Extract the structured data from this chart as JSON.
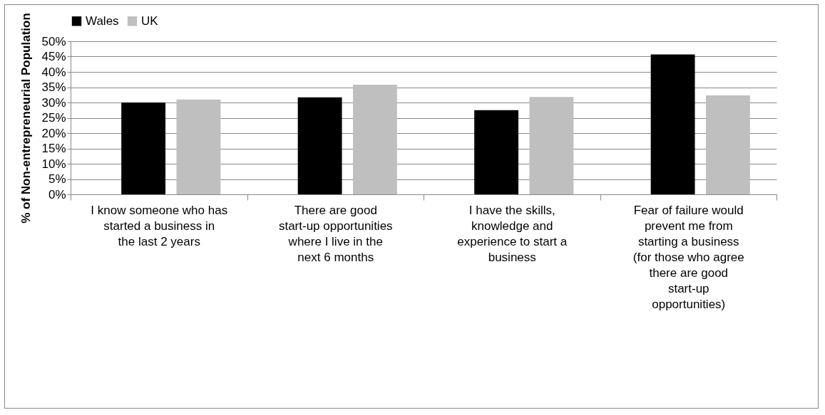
{
  "chart_data": {
    "type": "bar",
    "ylabel": "% of Non-entrepreneurial Population",
    "categories": [
      "I know someone who has started a business in the last 2 years",
      "There are good start-up opportunities where I live in the next 6 months",
      "I have the skills, knowledge and experience to start a business",
      "Fear of failure would prevent me from starting a business (for those who agree there are good start-up opportunities)"
    ],
    "series": [
      {
        "name": "Wales",
        "color": "#000000",
        "values": [
          30,
          31.7,
          27.5,
          45.7
        ]
      },
      {
        "name": "UK",
        "color": "#bfbfbf",
        "values": [
          31,
          35.8,
          31.8,
          32.3
        ]
      }
    ],
    "ylim": [
      0,
      50
    ],
    "yticks": [
      {
        "value": 0,
        "label": "0%"
      },
      {
        "value": 5,
        "label": "5%"
      },
      {
        "value": 10,
        "label": "10%"
      },
      {
        "value": 15,
        "label": "15%"
      },
      {
        "value": 20,
        "label": "20%"
      },
      {
        "value": 25,
        "label": "25%"
      },
      {
        "value": 30,
        "label": "30%"
      },
      {
        "value": 35,
        "label": "35%"
      },
      {
        "value": 40,
        "label": "40%"
      },
      {
        "value": 45,
        "label": "45%"
      },
      {
        "value": 50,
        "label": "50%"
      }
    ],
    "grid": "y",
    "legend": "top"
  }
}
